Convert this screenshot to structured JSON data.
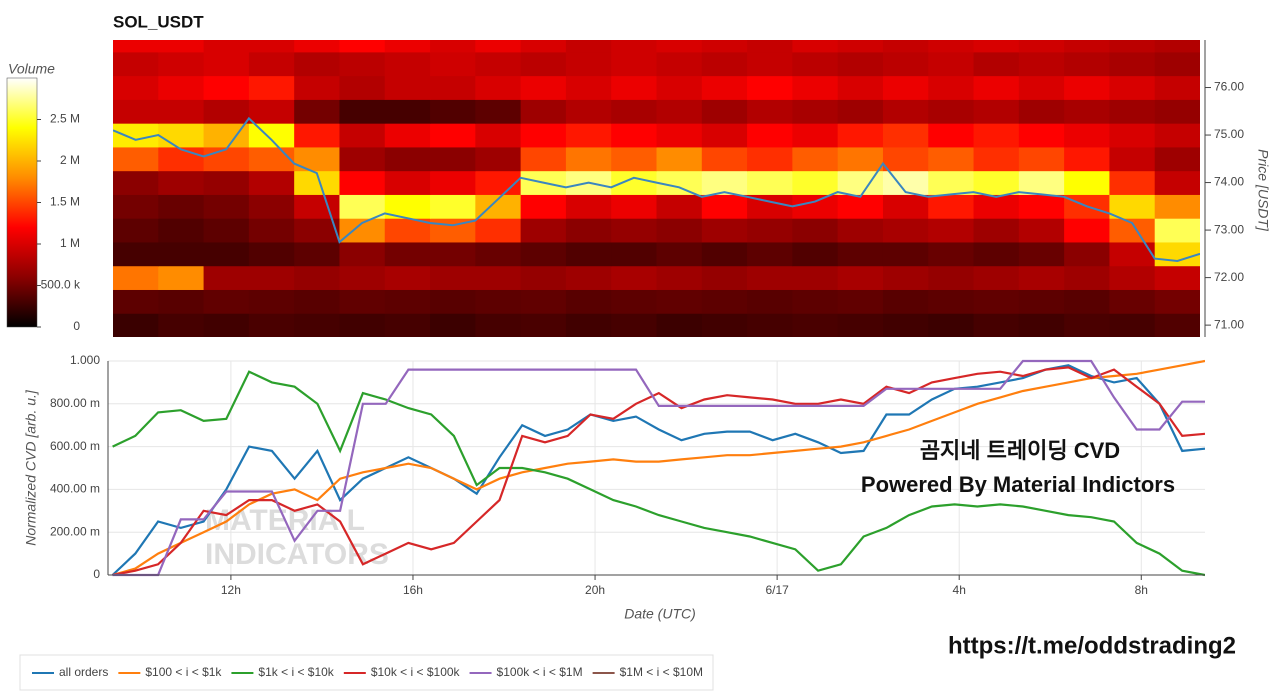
{
  "chart_data": [
    {
      "type": "heatmap",
      "title": "SOL_USDT",
      "ylabel": "Price [USDT]",
      "xlim": [
        9.4,
        33.4
      ],
      "ylim": [
        70.75,
        77.0
      ],
      "yticks": [
        {
          "value": 71,
          "label": "71.00"
        },
        {
          "value": 72,
          "label": "72.00"
        },
        {
          "value": 73,
          "label": "73.00"
        },
        {
          "value": 74,
          "label": "74.00"
        },
        {
          "value": 75,
          "label": "75.00"
        },
        {
          "value": 76,
          "label": "76.00"
        }
      ],
      "x_bins": [
        9.4,
        10.4,
        11.4,
        12.4,
        13.4,
        14.4,
        15.4,
        16.4,
        17.4,
        18.4,
        19.4,
        20.4,
        21.4,
        22.4,
        23.4,
        24.4,
        25.4,
        26.4,
        27.4,
        28.4,
        29.4,
        30.4,
        31.4,
        32.4,
        33.4
      ],
      "y_bins": [
        70.75,
        71.25,
        71.75,
        72.25,
        72.75,
        73.25,
        73.75,
        74.25,
        74.75,
        75.25,
        75.75,
        76.25,
        76.75,
        77.25
      ],
      "z": [
        [
          250000,
          300000,
          280000,
          320000,
          300000,
          280000,
          300000,
          260000,
          300000,
          320000,
          280000,
          300000,
          260000,
          280000,
          300000,
          320000,
          300000,
          280000,
          260000,
          300000,
          280000,
          320000,
          300000,
          350000
        ],
        [
          400000,
          380000,
          420000,
          400000,
          380000,
          420000,
          400000,
          380000,
          400000,
          420000,
          380000,
          400000,
          420000,
          400000,
          380000,
          400000,
          420000,
          380000,
          400000,
          420000,
          400000,
          380000,
          450000,
          500000
        ],
        [
          1700000,
          1800000,
          700000,
          700000,
          650000,
          700000,
          750000,
          700000,
          700000,
          650000,
          700000,
          750000,
          700000,
          650000,
          700000,
          700000,
          750000,
          700000,
          650000,
          700000,
          750000,
          700000,
          800000,
          900000
        ],
        [
          300000,
          300000,
          300000,
          350000,
          400000,
          600000,
          500000,
          500000,
          450000,
          400000,
          350000,
          350000,
          400000,
          350000,
          400000,
          350000,
          400000,
          400000,
          450000,
          400000,
          450000,
          600000,
          900000,
          2200000
        ],
        [
          400000,
          350000,
          400000,
          500000,
          600000,
          1800000,
          1500000,
          1600000,
          1400000,
          700000,
          600000,
          650000,
          600000,
          700000,
          650000,
          600000,
          700000,
          750000,
          800000,
          700000,
          800000,
          1200000,
          1600000,
          2600000
        ],
        [
          500000,
          450000,
          500000,
          600000,
          900000,
          2600000,
          2400000,
          2500000,
          2000000,
          1200000,
          1000000,
          1100000,
          900000,
          1200000,
          1000000,
          1100000,
          1200000,
          1000000,
          1300000,
          1100000,
          1200000,
          1400000,
          2200000,
          1800000
        ],
        [
          600000,
          700000,
          650000,
          800000,
          2200000,
          1200000,
          1000000,
          1100000,
          1300000,
          2600000,
          2700000,
          2500000,
          2600000,
          2700000,
          2600000,
          2500000,
          2700000,
          2800000,
          2600000,
          2500000,
          2700000,
          2400000,
          1400000,
          900000
        ],
        [
          1600000,
          1400000,
          1500000,
          1600000,
          1800000,
          700000,
          600000,
          600000,
          700000,
          1500000,
          1700000,
          1600000,
          1800000,
          1500000,
          1400000,
          1600000,
          1700000,
          1500000,
          1600000,
          1400000,
          1500000,
          1300000,
          900000,
          700000
        ],
        [
          2300000,
          2200000,
          2000000,
          2400000,
          1300000,
          900000,
          1100000,
          1200000,
          1000000,
          1200000,
          1300000,
          1200000,
          1100000,
          1000000,
          1200000,
          1100000,
          1300000,
          1400000,
          1200000,
          1300000,
          1200000,
          1100000,
          1000000,
          900000
        ],
        [
          900000,
          900000,
          800000,
          900000,
          500000,
          300000,
          300000,
          350000,
          400000,
          700000,
          800000,
          750000,
          800000,
          700000,
          800000,
          750000,
          700000,
          800000,
          750000,
          800000,
          700000,
          750000,
          700000,
          650000
        ],
        [
          1000000,
          1100000,
          1200000,
          1300000,
          900000,
          800000,
          900000,
          900000,
          1000000,
          1100000,
          1000000,
          1100000,
          1000000,
          1100000,
          1200000,
          1100000,
          1000000,
          1100000,
          1000000,
          1100000,
          1000000,
          1100000,
          1000000,
          900000
        ],
        [
          900000,
          950000,
          1000000,
          900000,
          800000,
          850000,
          900000,
          950000,
          900000,
          850000,
          900000,
          950000,
          900000,
          850000,
          900000,
          850000,
          800000,
          850000,
          900000,
          800000,
          850000,
          800000,
          750000,
          700000
        ],
        [
          1100000,
          1100000,
          1000000,
          1000000,
          1100000,
          1200000,
          1100000,
          1000000,
          1100000,
          1000000,
          900000,
          950000,
          1000000,
          950000,
          900000,
          1000000,
          950000,
          900000,
          950000,
          1000000,
          950000,
          900000,
          850000,
          800000
        ]
      ],
      "colorscale": [
        "#000000",
        "#8b0000",
        "#ff0000",
        "#ff8c00",
        "#ffff00",
        "#ffffff"
      ],
      "colorbar": {
        "title": "Volume",
        "lim": [
          0,
          3000000
        ],
        "ticks": [
          0,
          {
            "value": 500000,
            "label": "500.0 k"
          },
          {
            "value": 1000000,
            "label": "1 M"
          },
          {
            "value": 1500000,
            "label": "1.5 M"
          },
          {
            "value": 2000000,
            "label": "2 M"
          },
          {
            "value": 2500000,
            "label": "2.5 M"
          }
        ]
      },
      "price": {
        "color": "#3a86c0",
        "x": [
          9.4,
          9.9,
          10.4,
          10.9,
          11.4,
          11.9,
          12.4,
          12.9,
          13.4,
          13.9,
          14.4,
          14.9,
          15.4,
          15.9,
          16.4,
          16.9,
          17.4,
          17.9,
          18.4,
          18.9,
          19.4,
          19.9,
          20.4,
          20.9,
          21.4,
          21.9,
          22.4,
          22.9,
          23.4,
          23.9,
          24.4,
          24.9,
          25.4,
          25.9,
          26.4,
          26.9,
          27.4,
          27.9,
          28.4,
          28.9,
          29.4,
          29.9,
          30.4,
          30.9,
          31.4,
          31.9,
          32.4,
          32.9,
          33.4
        ],
        "values": [
          75.1,
          74.9,
          75.0,
          74.7,
          74.55,
          74.7,
          75.35,
          74.9,
          74.4,
          74.2,
          72.75,
          73.15,
          73.35,
          73.25,
          73.15,
          73.1,
          73.2,
          73.65,
          74.1,
          74.0,
          73.9,
          74.0,
          73.9,
          74.1,
          74.0,
          73.9,
          73.7,
          73.8,
          73.7,
          73.6,
          73.5,
          73.6,
          73.8,
          73.7,
          74.4,
          73.8,
          73.7,
          73.75,
          73.8,
          73.7,
          73.8,
          73.75,
          73.7,
          73.5,
          73.35,
          73.15,
          72.4,
          72.35,
          72.5
        ]
      }
    },
    {
      "type": "line",
      "xlabel": "Date (UTC)",
      "ylabel": "Normalized CVD [arb. u.]",
      "grid": true,
      "xlim": [
        9.3,
        33.4
      ],
      "ylim": [
        0,
        1
      ],
      "xticks": [
        {
          "value": 12,
          "label": "12h"
        },
        {
          "value": 16,
          "label": "16h"
        },
        {
          "value": 20,
          "label": "20h"
        },
        {
          "value": 24,
          "label": "6/17"
        },
        {
          "value": 28,
          "label": "4h"
        },
        {
          "value": 32,
          "label": "8h"
        }
      ],
      "yticks": [
        0,
        {
          "value": 0.2,
          "label": "200.00 m"
        },
        {
          "value": 0.4,
          "label": "400.00 m"
        },
        {
          "value": 0.6,
          "label": "600.00 m"
        },
        {
          "value": 0.8,
          "label": "800.00 m"
        },
        {
          "value": 1,
          "label": "1.000"
        }
      ],
      "watermark": [
        "MATERIA L",
        "INDICATORS"
      ],
      "annotations": [
        "곰지네 트레이딩 CVD",
        "Powered By Material Indictors"
      ],
      "x": [
        9.4,
        9.9,
        10.4,
        10.9,
        11.4,
        11.9,
        12.4,
        12.9,
        13.4,
        13.9,
        14.4,
        14.9,
        15.4,
        15.9,
        16.4,
        16.9,
        17.4,
        17.9,
        18.4,
        18.9,
        19.4,
        19.9,
        20.4,
        20.9,
        21.4,
        21.9,
        22.4,
        22.9,
        23.4,
        23.9,
        24.4,
        24.9,
        25.4,
        25.9,
        26.4,
        26.9,
        27.4,
        27.9,
        28.4,
        28.9,
        29.4,
        29.9,
        30.4,
        30.9,
        31.4,
        31.9,
        32.4,
        32.9,
        33.4
      ],
      "series": [
        {
          "name": "all orders",
          "color": "#1f77b4",
          "values": [
            0.0,
            0.1,
            0.25,
            0.22,
            0.25,
            0.4,
            0.6,
            0.58,
            0.45,
            0.58,
            0.35,
            0.45,
            0.5,
            0.55,
            0.5,
            0.45,
            0.38,
            0.55,
            0.7,
            0.65,
            0.68,
            0.75,
            0.72,
            0.74,
            0.68,
            0.63,
            0.66,
            0.67,
            0.67,
            0.63,
            0.66,
            0.62,
            0.57,
            0.58,
            0.75,
            0.75,
            0.82,
            0.87,
            0.88,
            0.9,
            0.92,
            0.96,
            0.98,
            0.93,
            0.9,
            0.92,
            0.8,
            0.58,
            0.59
          ]
        },
        {
          "name": "$100 < i < $1k",
          "color": "#ff7f0e",
          "values": [
            0.0,
            0.03,
            0.1,
            0.15,
            0.2,
            0.25,
            0.33,
            0.38,
            0.4,
            0.35,
            0.45,
            0.48,
            0.5,
            0.52,
            0.5,
            0.45,
            0.4,
            0.45,
            0.48,
            0.5,
            0.52,
            0.53,
            0.54,
            0.53,
            0.53,
            0.54,
            0.55,
            0.56,
            0.56,
            0.57,
            0.58,
            0.59,
            0.6,
            0.62,
            0.65,
            0.68,
            0.72,
            0.76,
            0.8,
            0.83,
            0.86,
            0.88,
            0.9,
            0.92,
            0.93,
            0.94,
            0.96,
            0.98,
            1.0
          ]
        },
        {
          "name": "$1k < i < $10k",
          "color": "#2ca02c",
          "values": [
            0.6,
            0.65,
            0.76,
            0.77,
            0.72,
            0.73,
            0.95,
            0.9,
            0.88,
            0.8,
            0.58,
            0.85,
            0.82,
            0.78,
            0.75,
            0.65,
            0.42,
            0.5,
            0.5,
            0.48,
            0.45,
            0.4,
            0.35,
            0.32,
            0.28,
            0.25,
            0.22,
            0.2,
            0.18,
            0.15,
            0.12,
            0.02,
            0.05,
            0.18,
            0.22,
            0.28,
            0.32,
            0.33,
            0.32,
            0.33,
            0.32,
            0.3,
            0.28,
            0.27,
            0.25,
            0.15,
            0.1,
            0.02,
            0.0
          ]
        },
        {
          "name": "$10k < i < $100k",
          "color": "#d62728",
          "values": [
            0.0,
            0.02,
            0.05,
            0.15,
            0.3,
            0.28,
            0.35,
            0.35,
            0.3,
            0.33,
            0.25,
            0.05,
            0.1,
            0.15,
            0.12,
            0.15,
            0.25,
            0.35,
            0.65,
            0.62,
            0.65,
            0.75,
            0.73,
            0.8,
            0.85,
            0.78,
            0.82,
            0.84,
            0.83,
            0.82,
            0.8,
            0.8,
            0.82,
            0.8,
            0.88,
            0.85,
            0.9,
            0.92,
            0.94,
            0.95,
            0.93,
            0.96,
            0.97,
            0.92,
            0.96,
            0.88,
            0.8,
            0.65,
            0.66
          ]
        },
        {
          "name": "$100k < i < $1M",
          "color": "#9467bd",
          "values": [
            0,
            0,
            0,
            0.26,
            0.26,
            0.39,
            0.39,
            0.39,
            0.16,
            0.3,
            0.3,
            0.8,
            0.8,
            0.96,
            0.96,
            0.96,
            0.96,
            0.96,
            0.96,
            0.96,
            0.96,
            0.96,
            0.96,
            0.96,
            0.79,
            0.79,
            0.79,
            0.79,
            0.79,
            0.79,
            0.79,
            0.79,
            0.79,
            0.79,
            0.87,
            0.87,
            0.87,
            0.87,
            0.87,
            0.87,
            1.0,
            1.0,
            1.0,
            1.0,
            0.83,
            0.68,
            0.68,
            0.81,
            0.81
          ]
        },
        {
          "name": "$1M < i < $10M",
          "color": "#8c564b",
          "values": [
            null,
            null,
            null,
            null,
            null,
            null,
            null,
            null,
            null,
            null,
            null,
            null,
            null,
            null,
            null,
            null,
            null,
            null,
            null,
            null,
            null,
            null,
            null,
            null,
            null,
            null,
            null,
            null,
            null,
            null,
            null,
            null,
            null,
            null,
            null,
            null,
            null,
            null,
            null,
            null,
            null,
            null,
            null,
            null,
            null,
            null,
            null,
            null,
            null
          ]
        }
      ]
    }
  ],
  "link": "https://t.me/oddstrading2"
}
